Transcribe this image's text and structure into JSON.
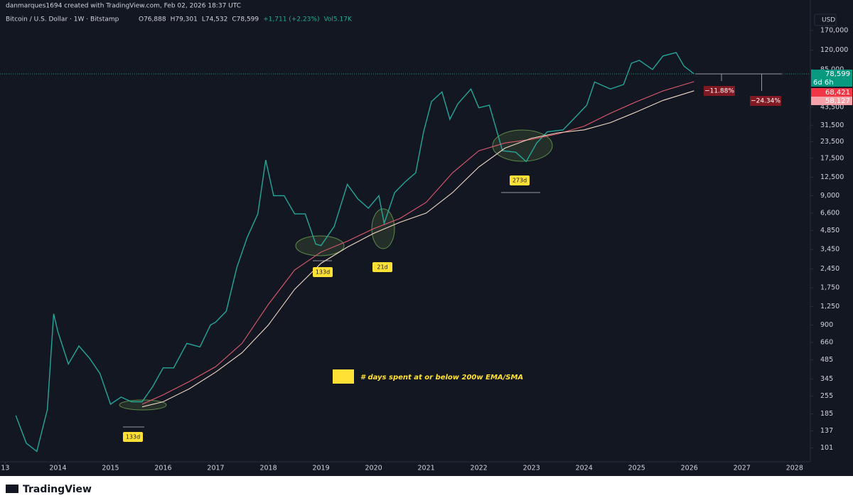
{
  "header": {
    "credit": "danmarques1694 created with TradingView.com, Feb 02, 2026 18:37 UTC",
    "symbol": "Bitcoin / U.S. Dollar · 1W · Bitstamp",
    "ohlc": [
      "O76,888",
      "H79,301",
      "L74,532",
      "C78,599",
      "+1,711 (+2.23%)",
      "Vol5.17K"
    ],
    "currency": "USD"
  },
  "chart_data": {
    "type": "line",
    "log_scale": true,
    "grid": false,
    "xlim": [
      2012.9,
      2028.3
    ],
    "xticks": [
      {
        "value": 2013,
        "label": "13"
      },
      2014,
      2015,
      2016,
      2017,
      2018,
      2019,
      2020,
      2021,
      2022,
      2023,
      2024,
      2025,
      2026,
      2027,
      2028
    ],
    "ylim": [
      79,
      242000
    ],
    "yticks": [
      101,
      137,
      185,
      255,
      345,
      485,
      660,
      900,
      {
        "value": 1250,
        "label": "1,250"
      },
      {
        "value": 1750,
        "label": "1,750"
      },
      {
        "value": 2450,
        "label": "2,450"
      },
      {
        "value": 3450,
        "label": "3,450"
      },
      {
        "value": 4850,
        "label": "4,850"
      },
      {
        "value": 6600,
        "label": "6,600"
      },
      {
        "value": 9000,
        "label": "9,000"
      },
      {
        "value": 12500,
        "label": "12,500"
      },
      {
        "value": 17500,
        "label": "17,500"
      },
      {
        "value": 23500,
        "label": "23,500"
      },
      {
        "value": 31500,
        "label": "31,500"
      },
      {
        "value": 43500,
        "label": "43,500"
      },
      {
        "value": 85000,
        "label": "85,000"
      },
      {
        "value": 120000,
        "label": "120,000"
      },
      {
        "value": 170000,
        "label": "170,000"
      }
    ],
    "series": [
      {
        "name": "BTCUSD",
        "color": "#26a69a",
        "x": [
          2013.2,
          2013.4,
          2013.6,
          2013.8,
          2013.92,
          2014.0,
          2014.2,
          2014.4,
          2014.6,
          2014.8,
          2015.0,
          2015.2,
          2015.4,
          2015.6,
          2015.8,
          2016.0,
          2016.2,
          2016.45,
          2016.7,
          2016.9,
          2017.0,
          2017.2,
          2017.4,
          2017.6,
          2017.8,
          2017.95,
          2018.1,
          2018.3,
          2018.5,
          2018.7,
          2018.9,
          2019.0,
          2019.25,
          2019.5,
          2019.7,
          2019.9,
          2020.1,
          2020.2,
          2020.4,
          2020.6,
          2020.8,
          2020.95,
          2021.1,
          2021.3,
          2021.45,
          2021.6,
          2021.85,
          2022.0,
          2022.2,
          2022.45,
          2022.7,
          2022.9,
          2023.1,
          2023.3,
          2023.6,
          2023.85,
          2024.05,
          2024.2,
          2024.5,
          2024.75,
          2024.9,
          2025.05,
          2025.3,
          2025.5,
          2025.75,
          2025.9,
          2026.09
        ],
        "values": [
          180,
          110,
          95,
          200,
          1100,
          800,
          450,
          620,
          500,
          380,
          220,
          250,
          230,
          230,
          300,
          420,
          420,
          650,
          610,
          900,
          950,
          1150,
          2500,
          4300,
          6500,
          17000,
          9000,
          9000,
          6500,
          6500,
          3800,
          3700,
          5200,
          11000,
          8500,
          7200,
          9000,
          5500,
          9500,
          11500,
          13500,
          28000,
          48000,
          57000,
          35000,
          46000,
          60000,
          43000,
          45000,
          20000,
          19500,
          16500,
          23000,
          28000,
          29000,
          37000,
          45000,
          68000,
          60000,
          65000,
          95000,
          100000,
          85000,
          108000,
          115000,
          90000,
          78599
        ]
      },
      {
        "name": "200w EMA",
        "color": "#e05a6d",
        "x": [
          2015.6,
          2016.0,
          2016.5,
          2017.0,
          2017.5,
          2018.0,
          2018.5,
          2019.0,
          2019.5,
          2020.0,
          2020.5,
          2021.0,
          2021.5,
          2022.0,
          2022.5,
          2023.0,
          2023.5,
          2024.0,
          2024.5,
          2025.0,
          2025.5,
          2026.09
        ],
        "values": [
          220,
          260,
          330,
          430,
          650,
          1300,
          2400,
          3300,
          4000,
          5000,
          6000,
          8000,
          13500,
          20000,
          23000,
          24500,
          27000,
          31000,
          39000,
          48000,
          58000,
          68421
        ]
      },
      {
        "name": "200w SMA",
        "color": "#f3d9c4",
        "x": [
          2015.6,
          2016.0,
          2016.5,
          2017.0,
          2017.5,
          2018.0,
          2018.5,
          2019.0,
          2019.5,
          2020.0,
          2020.5,
          2021.0,
          2021.5,
          2022.0,
          2022.5,
          2023.0,
          2023.5,
          2024.0,
          2024.5,
          2025.0,
          2025.5,
          2026.09
        ],
        "values": [
          210,
          230,
          290,
          390,
          550,
          900,
          1700,
          2700,
          3600,
          4600,
          5600,
          6600,
          9500,
          15000,
          21000,
          25000,
          27500,
          29000,
          33000,
          40000,
          49000,
          58127
        ]
      }
    ],
    "price_labels": [
      {
        "value": 78599,
        "label": "78,599",
        "color": "#089981"
      },
      {
        "value": 68421,
        "label": "68,421",
        "color": "#f23645"
      },
      {
        "value": 58127,
        "label": "58,127",
        "color": "#f7a1a9"
      }
    ],
    "countdown": "6d 6h",
    "drawdowns": [
      {
        "value": -11.88,
        "label": "−11.88%"
      },
      {
        "value": -24.34,
        "label": "−24.34%"
      }
    ],
    "annotations": [
      "133d",
      "133d",
      "21d",
      "273d"
    ],
    "legend_note": "# days spent at or below 200w EMA/SMA"
  },
  "footer": {
    "brand": "TradingView"
  }
}
